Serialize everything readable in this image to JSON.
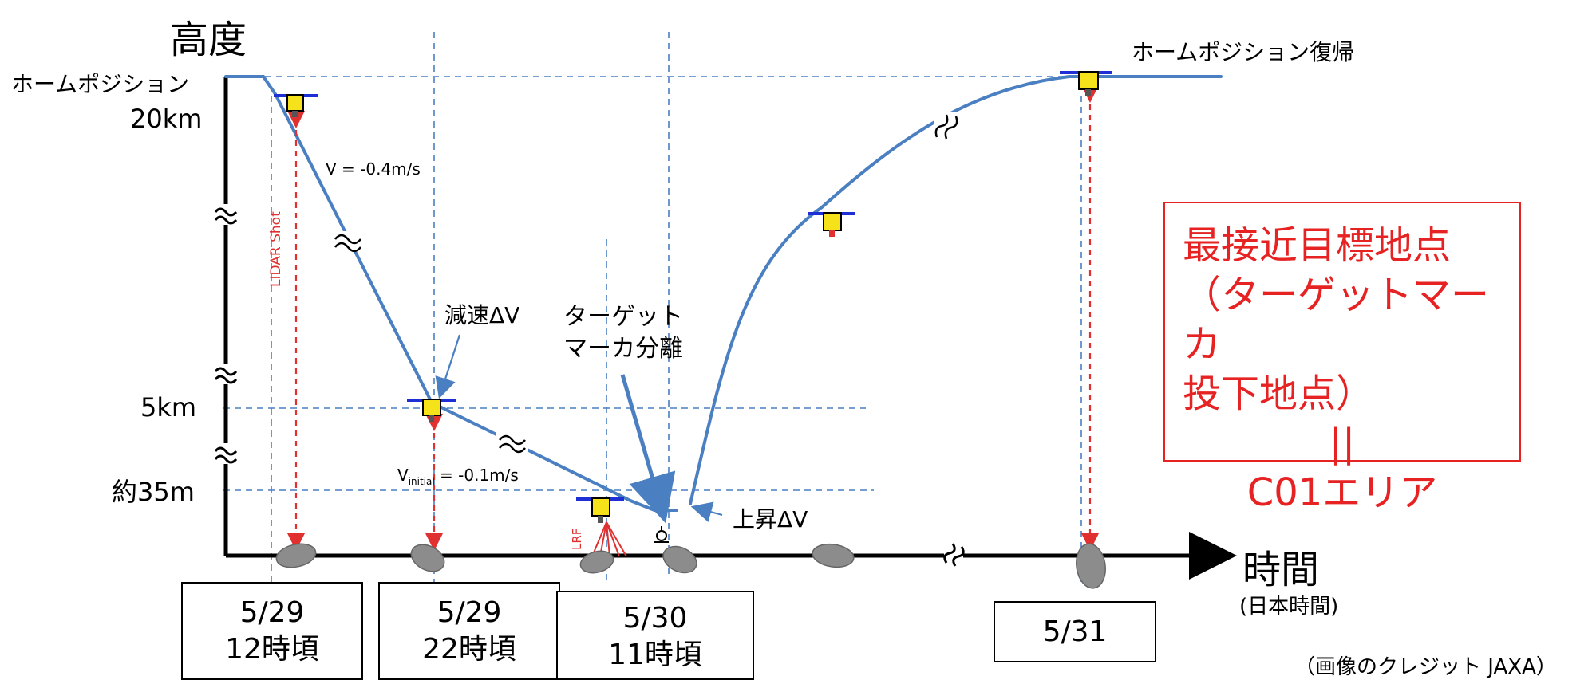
{
  "axes": {
    "y_title": "高度",
    "x_title": "時間",
    "x_subtitle": "(日本時間)"
  },
  "altitude_labels": {
    "home_position": "ホームポジション",
    "home_altitude": "20km",
    "five_km": "5km",
    "approx_35m": "約35m"
  },
  "annotations": {
    "home_return": "ホームポジション復帰",
    "velocity_descent": "V = -0.4m/s",
    "decel": "減速ΔV",
    "target_marker_sep_line1": "ターゲット",
    "target_marker_sep_line2": "マーカ分離",
    "v_initial_prefix": "V",
    "v_initial_sub": "initial",
    "v_initial_suffix": " = -0.1m/s",
    "ascent": "上昇ΔV",
    "lidar": "LIDAR Shot",
    "lrf": "LRF"
  },
  "dates": [
    {
      "line1": "5/29",
      "line2": "12時頃"
    },
    {
      "line1": "5/29",
      "line2": "22時頃"
    },
    {
      "line1": "5/30",
      "line2": "11時頃"
    },
    {
      "line1": "5/31",
      "line2": ""
    }
  ],
  "red_box": {
    "line1": "最接近目標地点",
    "line2": "（ターゲットマーカ",
    "line3": "投下地点）",
    "line4": "||",
    "line5": "C01エリア"
  },
  "credit": "（画像のクレジット JAXA）",
  "colors": {
    "trajectory": "#4a7fc1",
    "guide_dashed": "#4a7fc1",
    "lidar_red": "#e03030",
    "spacecraft_yellow": "#f5e21b",
    "spacecraft_bar": "#1f2fd6",
    "highlight_red": "#e62222",
    "asteroid_gray": "#8c8c8c"
  }
}
